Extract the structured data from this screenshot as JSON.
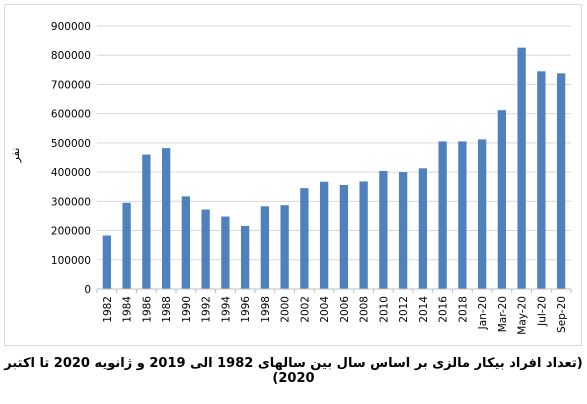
{
  "chart_data": {
    "type": "bar",
    "categories": [
      "1982",
      "1984",
      "1986",
      "1988",
      "1990",
      "1992",
      "1994",
      "1996",
      "1998",
      "2000",
      "2002",
      "2004",
      "2006",
      "2008",
      "2010",
      "2012",
      "2014",
      "2016",
      "2018",
      "Jan-20",
      "Mar-20",
      "May-20",
      "Jul-20",
      "Sep-20"
    ],
    "values": [
      183000,
      295000,
      460000,
      482000,
      317000,
      272000,
      248000,
      216000,
      283000,
      287000,
      345000,
      367000,
      356000,
      368000,
      404000,
      400000,
      413000,
      505000,
      505000,
      512000,
      612000,
      826000,
      745000,
      738000
    ],
    "title": "",
    "xlabel": "",
    "ylabel": "نفر",
    "ylim": [
      0,
      900000
    ],
    "yticks": [
      0,
      100000,
      200000,
      300000,
      400000,
      500000,
      600000,
      700000,
      800000,
      900000
    ],
    "grid": true,
    "bar_color": "#4F81BD",
    "grid_color": "#d9d9d9"
  },
  "caption": "(تعداد افراد بیکار مالزی بر اساس سال بین سالهای 1982 الی 2019 و ژانویه 2020 تا اکتبر 2020)"
}
